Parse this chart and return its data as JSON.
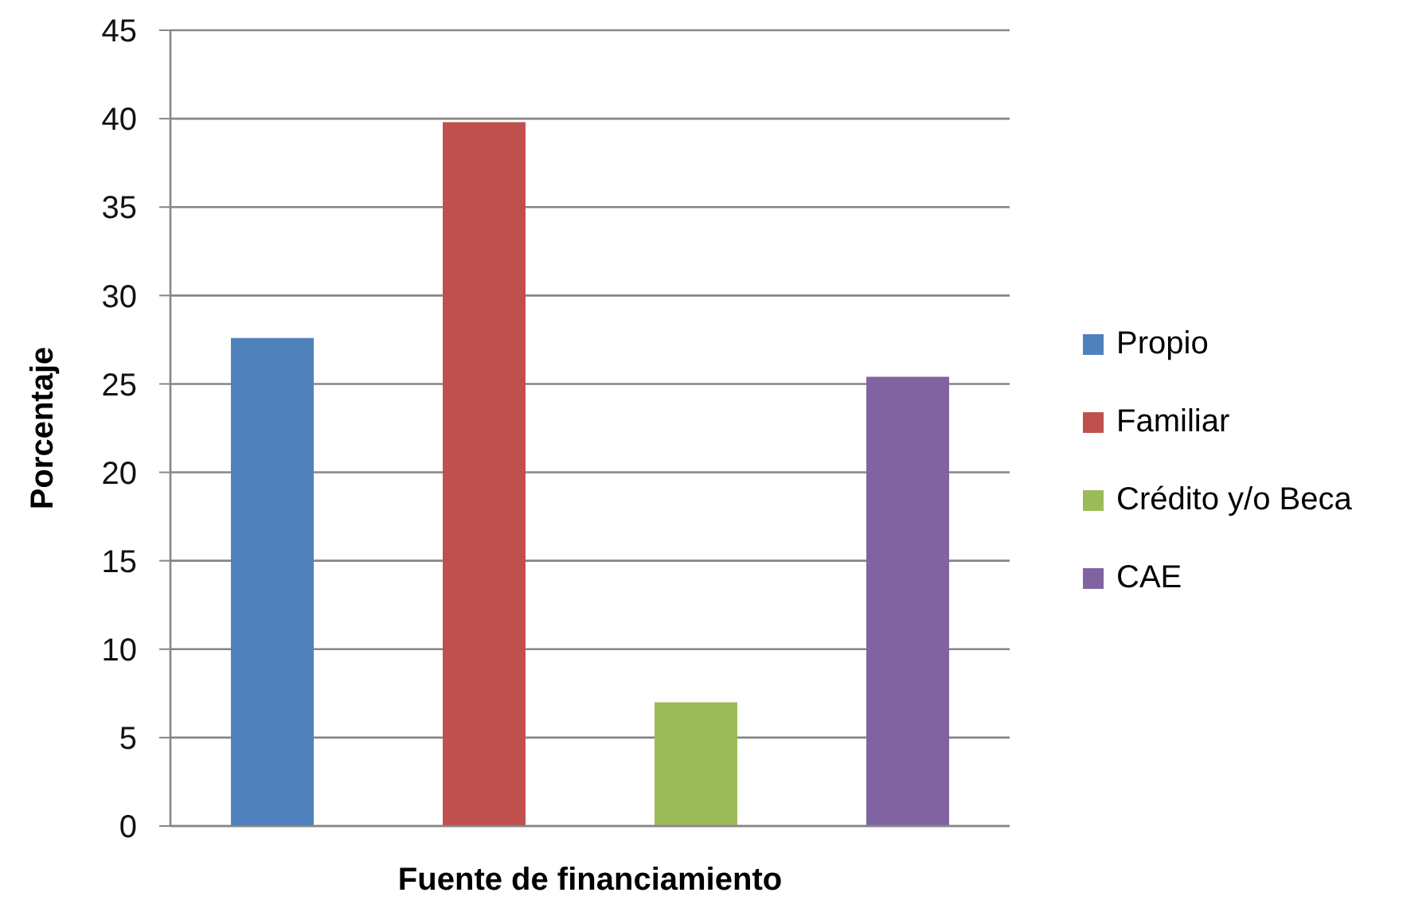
{
  "chart_data": {
    "type": "bar",
    "categories": [
      null
    ],
    "series": [
      {
        "name": "Propio",
        "color": "#4f81bd",
        "values": [
          27.6
        ]
      },
      {
        "name": "Familiar",
        "color": "#c0504d",
        "values": [
          39.8
        ]
      },
      {
        "name": "Crédito y/o Beca",
        "color": "#9bbb59",
        "values": [
          7.0
        ]
      },
      {
        "name": "CAE",
        "color": "#8064a2",
        "values": [
          25.4
        ]
      }
    ],
    "xlabel": "Fuente de financiamiento",
    "ylabel": "Porcentaje",
    "ylim": [
      0,
      45
    ],
    "yticks": [
      0,
      5,
      10,
      15,
      20,
      25,
      30,
      35,
      40,
      45
    ],
    "grid": "y",
    "legend": "right"
  }
}
